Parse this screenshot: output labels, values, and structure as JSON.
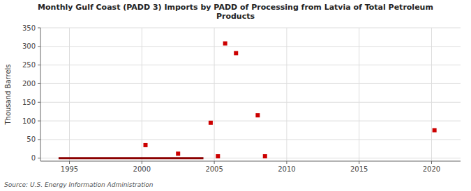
{
  "chart_data": {
    "type": "scatter",
    "title": "Monthly Gulf Coast (PADD 3) Imports by PADD of Processing from Latvia of Total Petroleum\nProducts",
    "y_label": "Thousand Barrels",
    "source": "Source: U.S. Energy Information Administration",
    "series": [
      {
        "type": "line",
        "color": "#8b0000",
        "line_style": "solid",
        "x": [
          1994.25,
          2004.25
        ],
        "values": [
          0,
          0
        ]
      },
      {
        "type": "scatter",
        "color": "#cc0000",
        "marker": "square",
        "x": [
          2000.25,
          2002.5,
          2004.75,
          2005.25,
          2005.75,
          2006.5,
          2008.0,
          2008.5,
          2020.2
        ],
        "values": [
          35,
          12,
          95,
          5,
          308,
          282,
          115,
          5,
          75
        ]
      }
    ],
    "xlim": [
      1993,
      2022
    ],
    "ylim": [
      -8,
      350
    ],
    "xticks": [
      1995,
      2000,
      2005,
      2010,
      2015,
      2020
    ],
    "yticks": [
      0,
      50,
      100,
      150,
      200,
      250,
      300,
      350
    ],
    "grid": true
  }
}
